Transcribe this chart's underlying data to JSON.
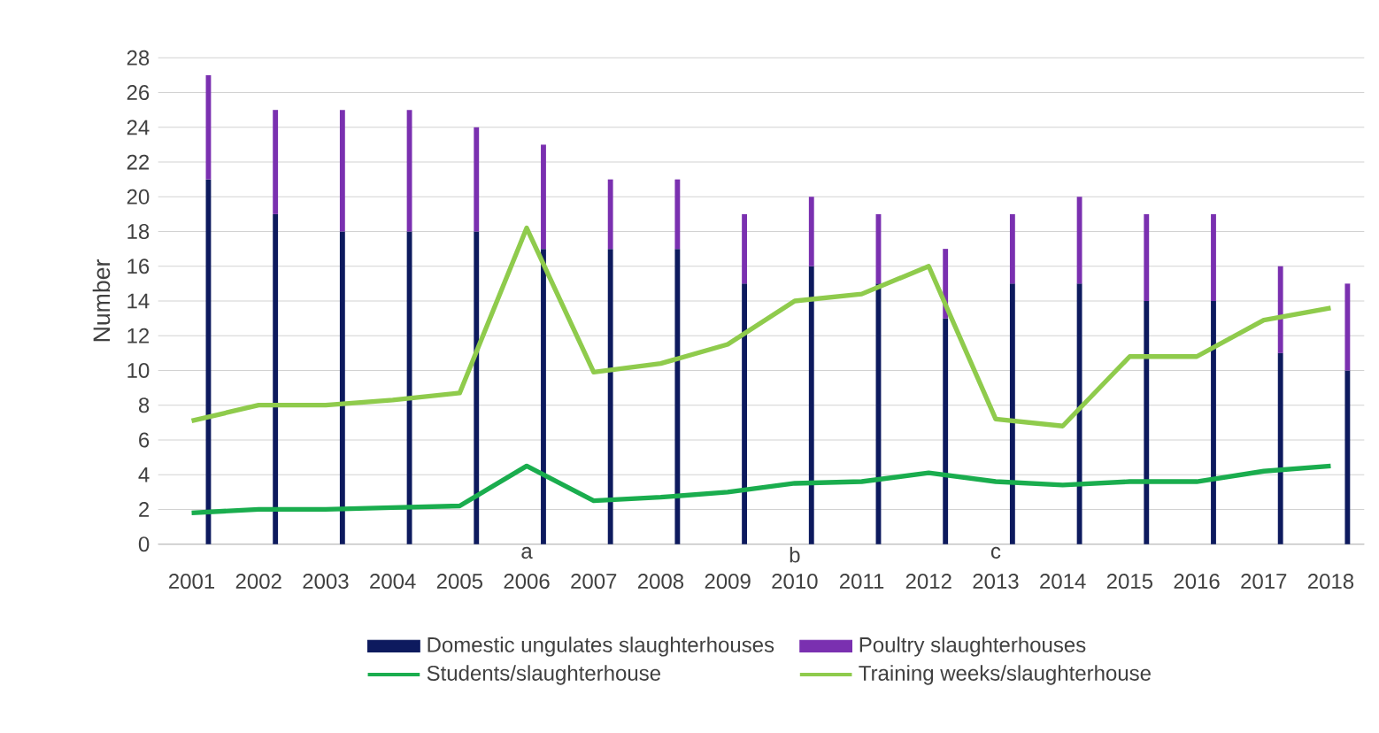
{
  "chart_data": {
    "type": "bar",
    "stacked": true,
    "ylabel": "Number",
    "categories": [
      "2001",
      "2002",
      "2003",
      "2004",
      "2005",
      "2006",
      "2007",
      "2008",
      "2009",
      "2010",
      "2011",
      "2012",
      "2013",
      "2014",
      "2015",
      "2016",
      "2017",
      "2018"
    ],
    "series": [
      {
        "name": "Domestic ungulates slaughterhouses",
        "color": "#0d1a5e",
        "values": [
          21,
          19,
          18,
          18,
          18,
          17,
          17,
          17,
          15,
          16,
          15,
          13,
          15,
          15,
          14,
          14,
          11,
          10
        ]
      },
      {
        "name": "Poultry slaughterhouses",
        "color": "#7a30b0",
        "values": [
          6,
          6,
          7,
          7,
          6,
          6,
          4,
          4,
          4,
          4,
          4,
          4,
          4,
          5,
          5,
          5,
          5,
          5
        ]
      },
      {
        "name": "Students/slaughterhouse",
        "type": "line",
        "color": "#1aad4e",
        "values": [
          1.8,
          2.0,
          2.0,
          2.1,
          2.2,
          4.5,
          2.5,
          2.7,
          3.0,
          3.5,
          3.6,
          4.1,
          3.6,
          3.4,
          3.6,
          3.6,
          4.2,
          4.5
        ]
      },
      {
        "name": "Training weeks/slaughterhouse",
        "type": "line",
        "color": "#8fcb4c",
        "values": [
          7.1,
          8.0,
          8.0,
          8.3,
          8.7,
          18.2,
          9.9,
          10.4,
          11.5,
          14.0,
          14.4,
          16.0,
          7.2,
          6.8,
          10.8,
          10.8,
          12.9,
          13.6
        ]
      }
    ],
    "ylim": [
      0,
      28
    ],
    "yticks": [
      0,
      2,
      4,
      6,
      8,
      10,
      12,
      14,
      16,
      18,
      20,
      22,
      24,
      26,
      28
    ],
    "grid": "y",
    "legend": "bottom",
    "marker": "none",
    "line_style": "solid",
    "annotations": [
      "a",
      "b",
      "c"
    ]
  }
}
